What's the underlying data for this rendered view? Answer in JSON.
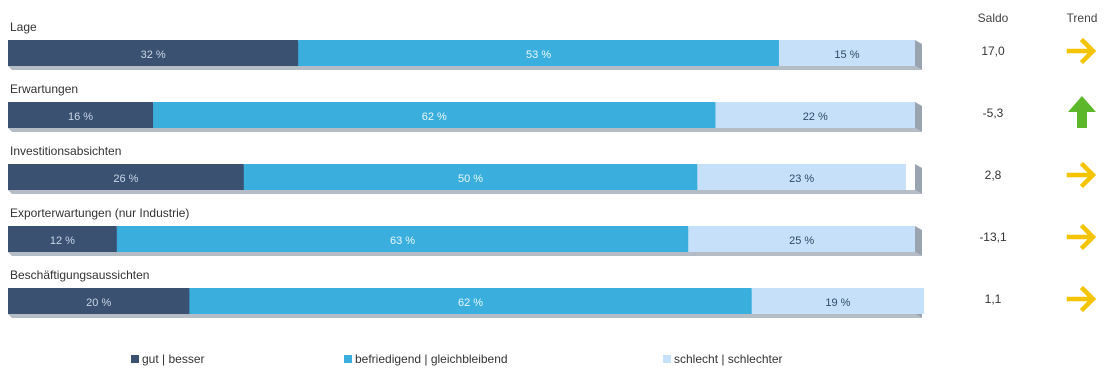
{
  "chart_data": {
    "type": "bar",
    "stacked": true,
    "orientation": "horizontal",
    "categories": [
      "Lage",
      "Erwartungen",
      "Investitionsabsichten",
      "Exporterwartungen (nur Industrie)",
      "Beschäftigungsaussichten"
    ],
    "series": [
      {
        "name": "gut | besser",
        "color": "#3a5172",
        "values": [
          32,
          16,
          26,
          12,
          20
        ]
      },
      {
        "name": "befriedigend | gleichbleibend",
        "color": "#3aaedc",
        "values": [
          53,
          62,
          50,
          63,
          62
        ]
      },
      {
        "name": "schlecht | schlechter",
        "color": "#c5e0f8",
        "values": [
          15,
          22,
          23,
          25,
          19
        ]
      }
    ],
    "value_suffix": " %",
    "xlim": [
      0,
      100
    ],
    "grid": false,
    "legend_position": "bottom",
    "columns": {
      "saldo_header": "Saldo",
      "trend_header": "Trend"
    },
    "saldo": [
      "17,0",
      "-5,3",
      "2,8",
      "-13,1",
      "1,1"
    ],
    "trend": [
      "right",
      "up",
      "right",
      "right",
      "right"
    ],
    "trend_icons": [
      "arrow-right-icon",
      "arrow-up-icon",
      "arrow-right-icon",
      "arrow-right-icon",
      "arrow-right-icon"
    ],
    "colors": {
      "arrow_yellow": "#f5c400",
      "arrow_green": "#5cb82a",
      "bar_shadow": "#9aa4b0"
    }
  }
}
